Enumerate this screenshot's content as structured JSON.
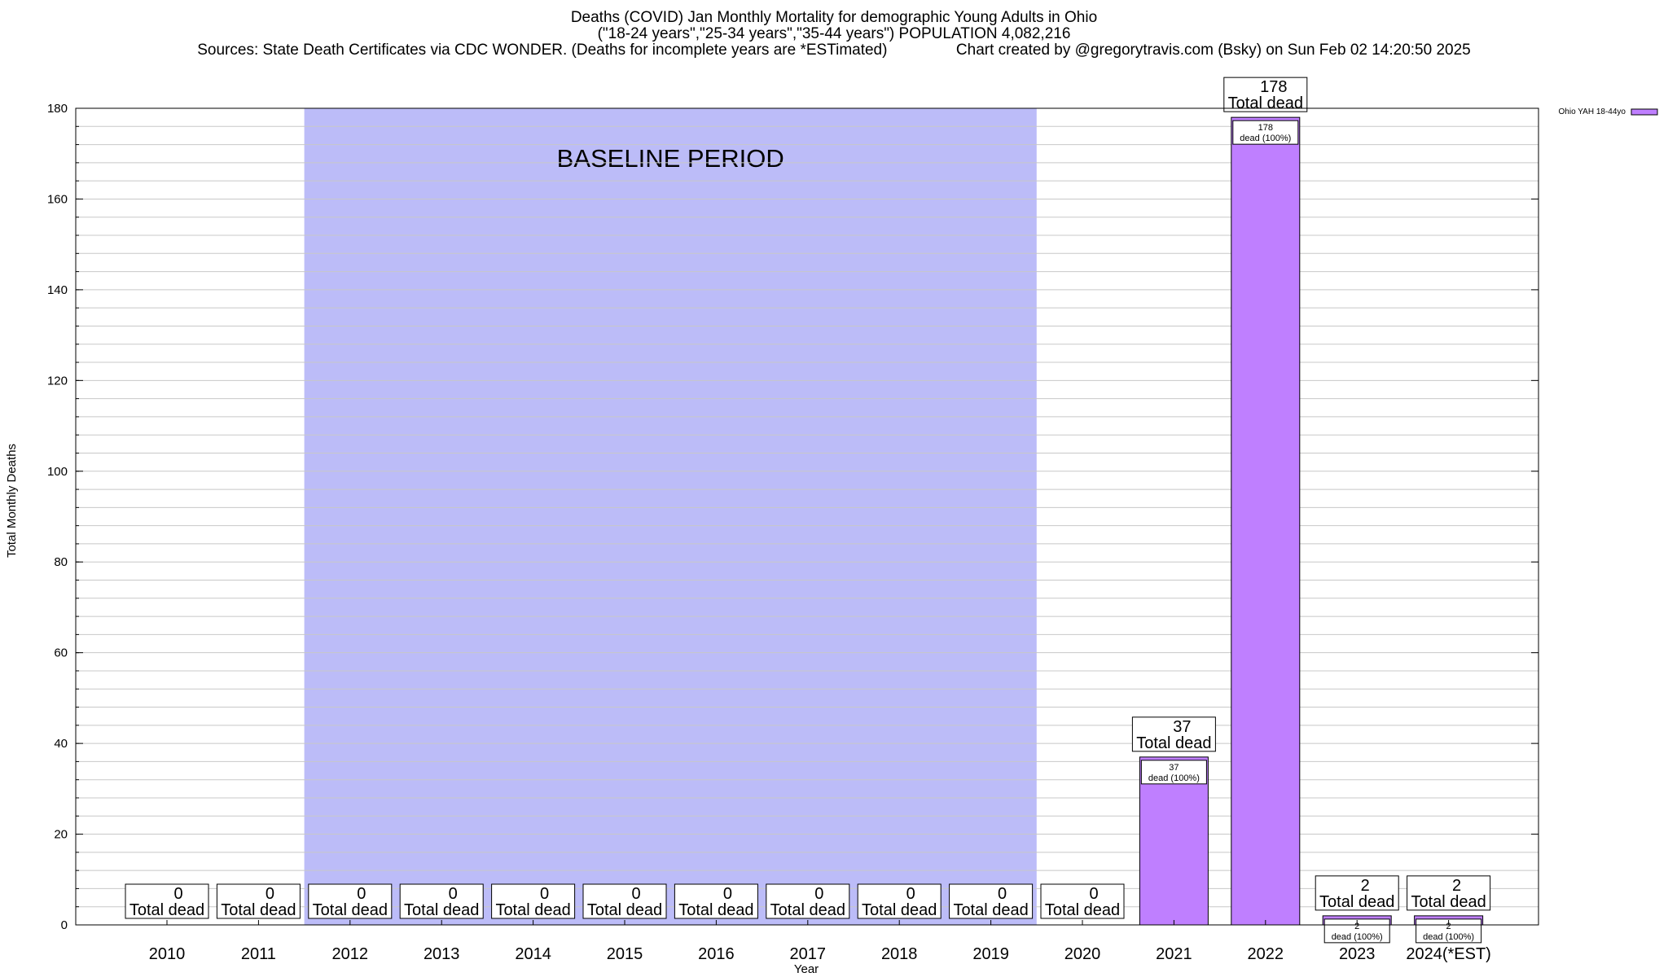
{
  "header": {
    "title_line1": "Deaths (COVID) Jan Monthly Mortality for demographic Young Adults in Ohio",
    "title_line2": "(\"18-24 years\",\"25-34 years\",\"35-44 years\") POPULATION 4,082,216",
    "title_line3": "Sources: State Death Certificates via CDC WONDER. (Deaths for incomplete years are *ESTimated)                Chart created by @gregorytravis.com (Bsky) on Sun Feb 02 14:20:50 2025"
  },
  "chart_data": {
    "type": "bar",
    "xlabel": "Year",
    "ylabel": "Total Monthly Deaths",
    "ylim": [
      0,
      180
    ],
    "yticks": [
      0,
      20,
      40,
      60,
      80,
      100,
      120,
      140,
      160,
      180
    ],
    "y_minor_step": 4,
    "grid": true,
    "categories": [
      "2010",
      "2011",
      "2012",
      "2013",
      "2014",
      "2015",
      "2016",
      "2017",
      "2018",
      "2019",
      "2020",
      "2021",
      "2022",
      "2023",
      "2024(*EST)"
    ],
    "series": [
      {
        "name": "Ohio YAH 18-44yo",
        "color": "#bf7fff",
        "values": [
          0,
          0,
          0,
          0,
          0,
          0,
          0,
          0,
          0,
          0,
          0,
          37,
          178,
          2,
          2
        ]
      }
    ],
    "total_labels": [
      "0",
      "0",
      "0",
      "0",
      "0",
      "0",
      "0",
      "0",
      "0",
      "0",
      "0",
      "37",
      "178",
      "2",
      "2"
    ],
    "total_caption": "Total dead",
    "inner_labels": [
      "",
      "",
      "",
      "",
      "",
      "",
      "",
      "",
      "",
      "",
      "",
      "37",
      "178",
      "2",
      "2"
    ],
    "inner_caption": "dead (100%)",
    "baseline": {
      "label": "BASELINE PERIOD",
      "from": "2012",
      "to": "2019",
      "color": "#bcbcf8"
    },
    "legend_position": "top-right"
  }
}
